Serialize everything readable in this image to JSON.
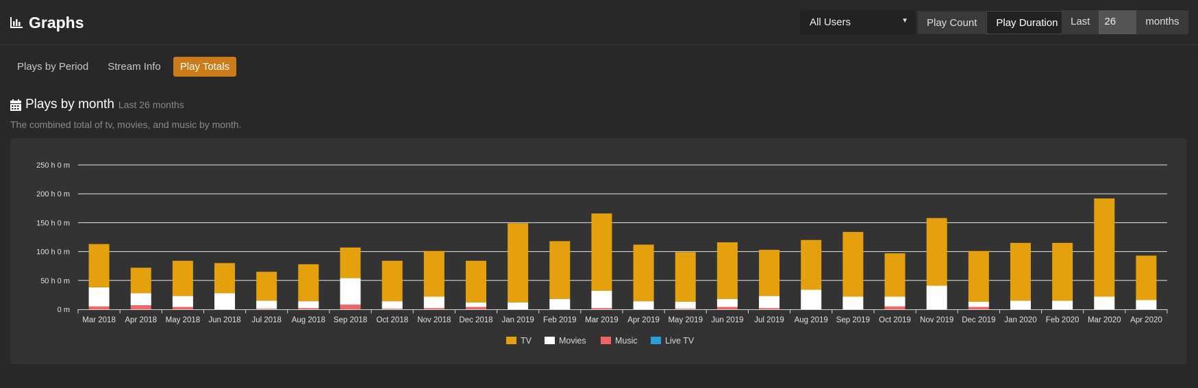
{
  "page": {
    "title": "Graphs"
  },
  "controls": {
    "user_select": "All Users",
    "count_label": "Play Count",
    "duration_label": "Play Duration",
    "last_label": "Last",
    "last_value": "26",
    "months_label": "months"
  },
  "tabs": [
    {
      "label": "Plays by Period"
    },
    {
      "label": "Stream Info"
    },
    {
      "label": "Play Totals"
    }
  ],
  "section": {
    "title": "Plays by month",
    "subtitle": "Last 26 months",
    "description": "The combined total of tv, movies, and music by month."
  },
  "colors": {
    "tv": "#e5a00d",
    "movies": "#ffffff",
    "music": "#f06464",
    "live_tv": "#2c9fdb",
    "accent": "#cc7b19"
  },
  "chart_data": {
    "type": "bar",
    "stacked": true,
    "categories": [
      "Mar 2018",
      "Apr 2018",
      "May 2018",
      "Jun 2018",
      "Jul 2018",
      "Aug 2018",
      "Sep 2018",
      "Oct 2018",
      "Nov 2018",
      "Dec 2018",
      "Jan 2019",
      "Feb 2019",
      "Mar 2019",
      "Apr 2019",
      "May 2019",
      "Jun 2019",
      "Jul 2019",
      "Aug 2019",
      "Sep 2019",
      "Oct 2019",
      "Nov 2019",
      "Dec 2019",
      "Jan 2020",
      "Feb 2020",
      "Mar 2020",
      "Apr 2020"
    ],
    "series": [
      {
        "name": "TV",
        "values": [
          75,
          44,
          61,
          52,
          50,
          64,
          53,
          70,
          79,
          72,
          137,
          100,
          134,
          98,
          86,
          98,
          80,
          86,
          112,
          75,
          117,
          88,
          100,
          100,
          170,
          77
        ]
      },
      {
        "name": "Movies",
        "values": [
          33,
          21,
          19,
          28,
          14,
          12,
          46,
          13,
          20,
          8,
          12,
          18,
          30,
          14,
          12,
          14,
          21,
          34,
          22,
          17,
          41,
          9,
          15,
          15,
          22,
          16
        ]
      },
      {
        "name": "Music",
        "values": [
          5,
          7,
          4,
          0,
          1,
          2,
          8,
          1,
          2,
          4,
          0,
          0,
          2,
          0,
          1,
          4,
          2,
          0,
          0,
          5,
          0,
          4,
          0,
          0,
          0,
          0
        ]
      },
      {
        "name": "Live TV",
        "values": [
          0,
          0,
          0,
          0,
          0,
          0,
          0,
          0,
          0,
          0,
          0,
          0,
          0,
          0,
          0,
          0,
          0,
          0,
          0,
          0,
          0,
          0,
          0,
          0,
          0,
          0
        ]
      }
    ],
    "ylim": [
      0,
      250
    ],
    "yticks": [
      0,
      50,
      100,
      150,
      200,
      250
    ],
    "ytick_labels": [
      "0 m",
      "50 h 0 m",
      "100 h 0 m",
      "150 h 0 m",
      "200 h 0 m",
      "250 h 0 m"
    ],
    "grid": true,
    "legend": "bottom"
  }
}
